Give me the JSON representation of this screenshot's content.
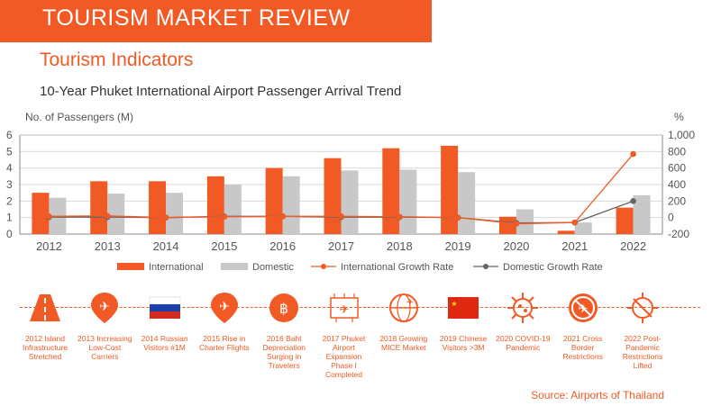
{
  "header": {
    "banner": "TOURISM MARKET REVIEW",
    "subtitle": "Tourism Indicators",
    "chart_title": "10-Year Phuket International Airport Passenger Arrival Trend"
  },
  "chart_data": {
    "type": "bar",
    "title": "10-Year Phuket International Airport Passenger Arrival Trend",
    "ylabel_left": "No. of Passengers (M)",
    "ylabel_right": "%",
    "categories": [
      "2012",
      "2013",
      "2014",
      "2015",
      "2016",
      "2017",
      "2018",
      "2019",
      "2020",
      "2021",
      "2022"
    ],
    "left_axis": {
      "ylim": [
        0,
        6
      ],
      "ticks": [
        "0",
        "1",
        "2",
        "3",
        "4",
        "5",
        "6"
      ]
    },
    "right_axis": {
      "ylim": [
        -200,
        1000
      ],
      "ticks": [
        "-200",
        "0",
        "200",
        "400",
        "600",
        "800",
        "1,000"
      ]
    },
    "series": [
      {
        "name": "International",
        "kind": "bar",
        "color": "#f15a24",
        "values": [
          2.5,
          3.2,
          3.2,
          3.5,
          4.0,
          4.6,
          5.2,
          5.35,
          1.05,
          0.2,
          1.6
        ]
      },
      {
        "name": "Domestic",
        "kind": "bar",
        "color": "#c8c8c8",
        "values": [
          2.2,
          2.45,
          2.5,
          3.0,
          3.5,
          3.85,
          3.9,
          3.75,
          1.5,
          0.7,
          2.35
        ]
      },
      {
        "name": "International Growth Rate",
        "kind": "line",
        "axis": "right",
        "color": "#f15a24",
        "values": [
          15,
          20,
          0,
          10,
          15,
          15,
          10,
          0,
          -75,
          -60,
          770
        ]
      },
      {
        "name": "Domestic Growth Rate",
        "kind": "line",
        "axis": "right",
        "color": "#666666",
        "values": [
          5,
          5,
          0,
          15,
          15,
          5,
          5,
          0,
          -65,
          -60,
          200
        ]
      }
    ],
    "grid": true,
    "legend_position": "bottom"
  },
  "timeline": [
    {
      "icon": "road-icon",
      "text": "2012 Island Infrastructure Stretched"
    },
    {
      "icon": "airplane-icon",
      "text": "2013 Increasing Low-Cost Carriers"
    },
    {
      "icon": "russia-flag-icon",
      "text": "2014 Russian Visitors #1M"
    },
    {
      "icon": "charter-plane-icon",
      "text": "2015 Rise in Charter Flights"
    },
    {
      "icon": "baht-icon",
      "text": "2016 Baht Depreciation Surging in Travelers"
    },
    {
      "icon": "airport-expansion-icon",
      "text": "2017 Phuket Airport Expansion Phase I Completed"
    },
    {
      "icon": "mice-globe-icon",
      "text": "2018 Growing MICE Market"
    },
    {
      "icon": "china-flag-icon",
      "text": "2019 Chinese Visitors >3M"
    },
    {
      "icon": "virus-icon",
      "text": "2020 COVID-19 Pandemic"
    },
    {
      "icon": "no-travel-icon",
      "text": "2021 Cross Border Restrictions"
    },
    {
      "icon": "virus-crossed-icon",
      "text": "2022 Post-Pandemic Restrictions Lifted"
    }
  ],
  "source": "Source: Airports of Thailand",
  "colors": {
    "accent": "#f15a24",
    "domestic": "#c8c8c8",
    "domestic_line": "#666666"
  }
}
